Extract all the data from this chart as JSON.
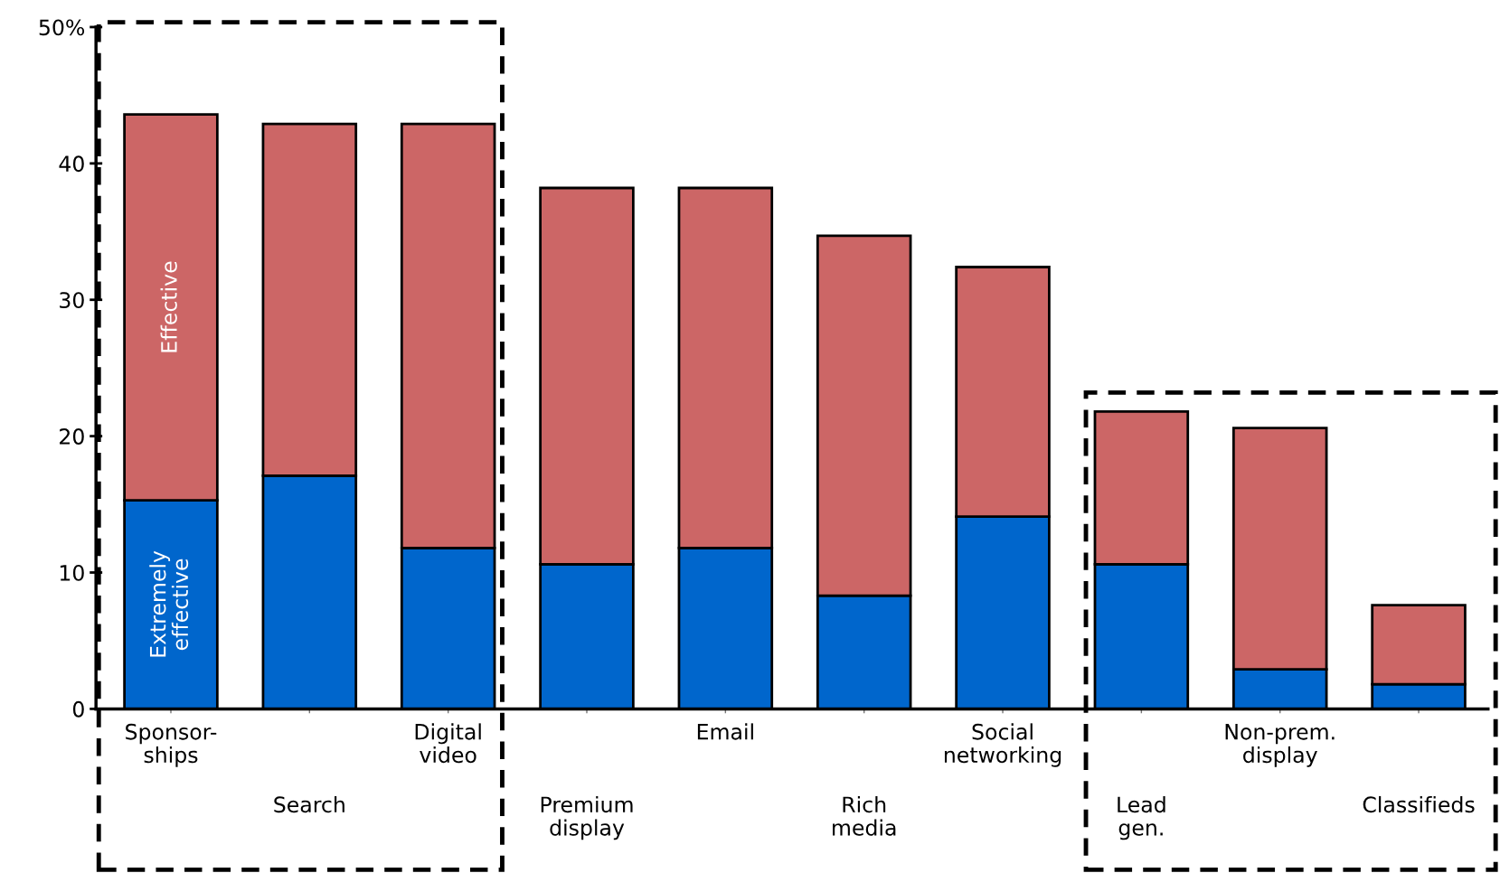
{
  "chart_data": {
    "type": "bar",
    "stacked": true,
    "legend": false,
    "grid": false,
    "categories": [
      "Sponsor-\nships",
      "Search",
      "Digital\nvideo",
      "Premium\ndisplay",
      "Email",
      "Rich\nmedia",
      "Social\nnetworking",
      "Lead\ngen.",
      "Non-prem.\ndisplay",
      "Classifieds"
    ],
    "series": [
      {
        "name": "Extremely\neffective",
        "color": "#0066cc",
        "values": [
          15.3,
          17.1,
          11.8,
          10.6,
          11.8,
          8.3,
          14.1,
          10.6,
          2.9,
          1.8
        ]
      },
      {
        "name": "Effective",
        "color": "#cc6666",
        "values": [
          28.3,
          25.8,
          31.1,
          27.6,
          26.4,
          26.4,
          18.3,
          11.2,
          17.7,
          5.8
        ]
      }
    ],
    "ylim": [
      0,
      50
    ],
    "yticks": [
      0,
      10,
      20,
      30,
      40,
      {
        "value": 50,
        "label": "50%"
      }
    ]
  }
}
